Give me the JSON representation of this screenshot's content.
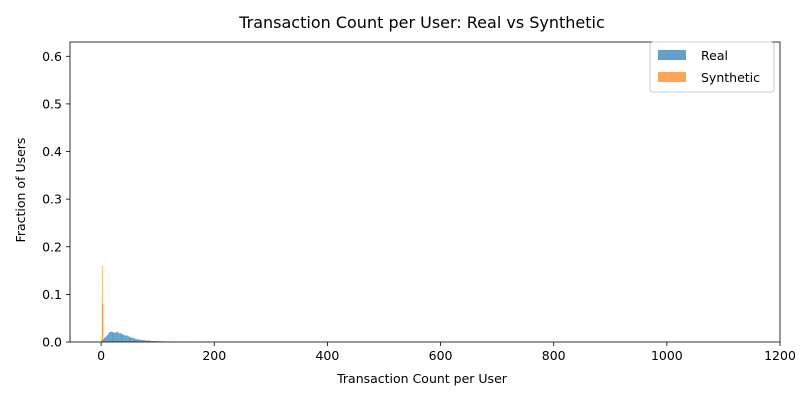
{
  "chart_data": {
    "type": "bar",
    "title": "Transaction Count per User: Real vs Synthetic",
    "xlabel": "Transaction Count per User",
    "ylabel": "Fraction of Users",
    "xlim": [
      -55,
      1200
    ],
    "ylim": [
      0,
      0.63
    ],
    "xticks": [
      0,
      200,
      400,
      600,
      800,
      1000,
      1200
    ],
    "xtick_labels": [
      "0",
      "200",
      "400",
      "600",
      "800",
      "1000",
      "1200"
    ],
    "yticks": [
      0.0,
      0.1,
      0.2,
      0.3,
      0.4,
      0.5,
      0.6
    ],
    "ytick_labels": [
      "0.0",
      "0.1",
      "0.2",
      "0.3",
      "0.4",
      "0.5",
      "0.6"
    ],
    "grid": false,
    "legend_position": "top-right",
    "series": [
      {
        "name": "Real",
        "color": "#1f77b4",
        "opacity": 0.7,
        "bin_width": 2,
        "x": [
          2,
          4,
          6,
          8,
          10,
          12,
          14,
          16,
          18,
          20,
          22,
          24,
          26,
          28,
          30,
          32,
          34,
          36,
          38,
          40,
          42,
          44,
          46,
          48,
          50,
          52,
          54,
          56,
          58,
          60,
          62,
          64,
          66,
          68,
          70,
          72,
          74,
          76,
          78,
          80,
          82,
          84,
          86,
          88,
          90,
          92,
          94,
          96,
          98,
          100,
          104,
          108,
          112,
          116,
          120,
          124,
          128,
          132,
          136,
          140,
          144,
          148,
          152,
          156,
          160,
          170,
          180,
          190,
          200,
          220,
          240,
          260,
          280
        ],
        "values": [
          0.004,
          0.006,
          0.009,
          0.011,
          0.013,
          0.016,
          0.019,
          0.021,
          0.022,
          0.021,
          0.02,
          0.019,
          0.021,
          0.02,
          0.022,
          0.018,
          0.019,
          0.017,
          0.016,
          0.015,
          0.014,
          0.013,
          0.014,
          0.012,
          0.011,
          0.01,
          0.009,
          0.009,
          0.008,
          0.007,
          0.006,
          0.006,
          0.005,
          0.005,
          0.005,
          0.004,
          0.004,
          0.004,
          0.003,
          0.003,
          0.003,
          0.003,
          0.003,
          0.002,
          0.002,
          0.002,
          0.002,
          0.002,
          0.002,
          0.002,
          0.002,
          0.002,
          0.0015,
          0.0015,
          0.0015,
          0.001,
          0.001,
          0.001,
          0.001,
          0.001,
          0.001,
          0.001,
          0.001,
          0.001,
          0.001,
          0.0008,
          0.0006,
          0.0005,
          0.0005,
          0.0004,
          0.0003,
          0.0003,
          0.0003
        ]
      },
      {
        "name": "Synthetic",
        "color": "#ff7f0e",
        "opacity": 0.7,
        "bin_width": 1.2,
        "x": [
          1,
          2,
          3,
          4,
          5
        ],
        "values": [
          0.006,
          0.16,
          0.08,
          0.003,
          0.001
        ]
      }
    ]
  }
}
